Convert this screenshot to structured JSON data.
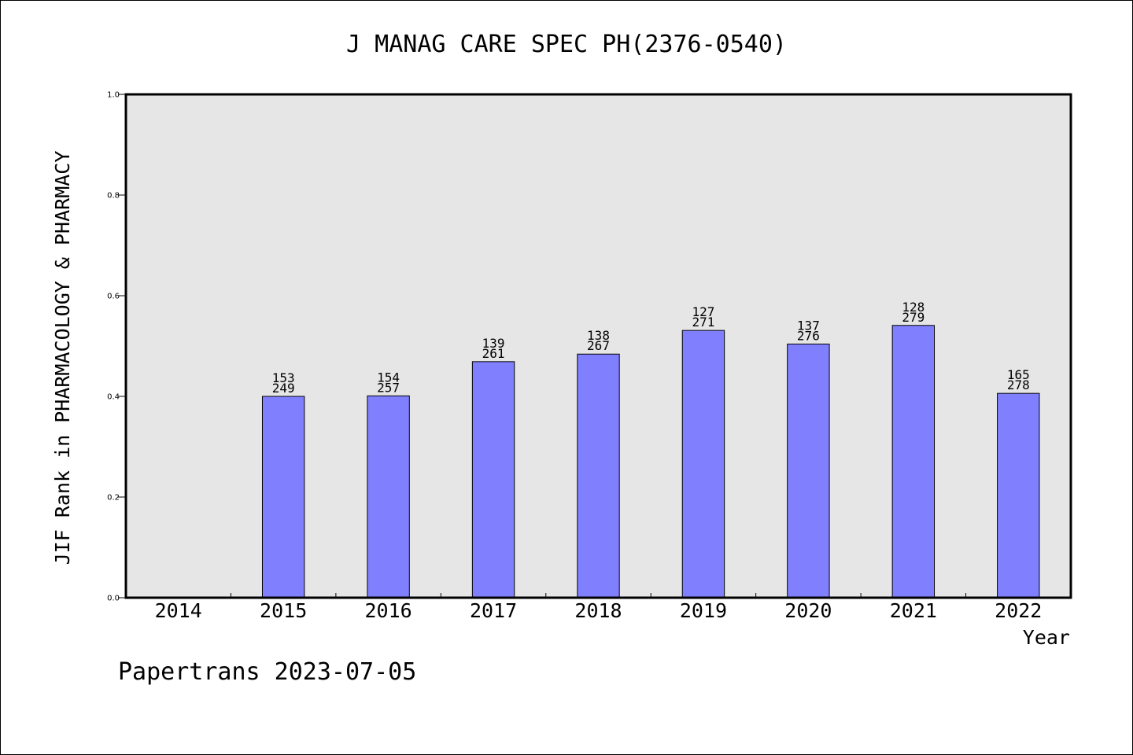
{
  "chart_data": {
    "type": "bar",
    "title": "J MANAG CARE SPEC PH(2376-0540)",
    "xlabel": "Year",
    "ylabel": "JIF Rank in PHARMACOLOGY & PHARMACY",
    "ylim": [
      0.0,
      1.0
    ],
    "yticks": [
      "0.0",
      "0.2",
      "0.4",
      "0.6",
      "0.8",
      "1.0"
    ],
    "grid": false,
    "categories": [
      "2014",
      "2015",
      "2016",
      "2017",
      "2018",
      "2019",
      "2020",
      "2021",
      "2022"
    ],
    "values": [
      null,
      0.4,
      0.401,
      0.469,
      0.484,
      0.531,
      0.504,
      0.541,
      0.406
    ],
    "bar_labels": [
      null,
      [
        "153",
        "249"
      ],
      [
        "154",
        "257"
      ],
      [
        "139",
        "261"
      ],
      [
        "138",
        "267"
      ],
      [
        "127",
        "271"
      ],
      [
        "137",
        "276"
      ],
      [
        "128",
        "279"
      ],
      [
        "165",
        "278"
      ]
    ],
    "colors": {
      "bar_fill": "#8080ff",
      "bar_stroke": "#000000",
      "plot_background": "#e6e6e6",
      "axis": "#000000"
    }
  },
  "footer": {
    "text": "Papertrans 2023-07-05"
  }
}
